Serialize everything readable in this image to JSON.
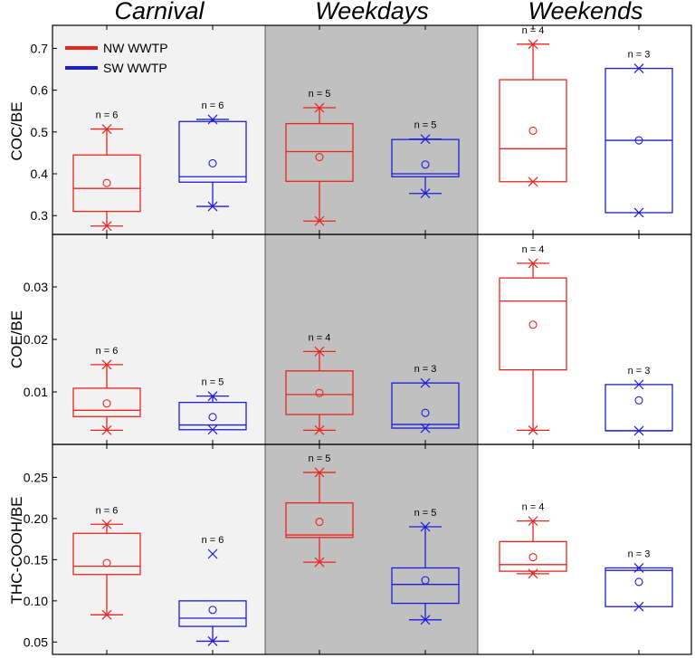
{
  "chart_data": {
    "type": "box",
    "groups": [
      "Carnival",
      "Weekdays",
      "Weekends"
    ],
    "group_shading": [
      "#f2f2f2",
      "#c0c0c0",
      "#ffffff"
    ],
    "legend": [
      {
        "name": "NW WWTP",
        "color": "#e8251f"
      },
      {
        "name": "SW WWTP",
        "color": "#1d1dd9"
      }
    ],
    "series_colors": {
      "NW WWTP": "#e8251f",
      "SW WWTP": "#1d1dd9"
    },
    "panels": [
      {
        "ylabel": "COC/BE",
        "ylim": [
          0.255,
          0.755
        ],
        "ticks": [
          0.3,
          0.4,
          0.5,
          0.6,
          0.7
        ],
        "tick_labels": [
          "0.3",
          "0.4",
          "0.5",
          "0.6",
          "0.7"
        ],
        "boxes": [
          {
            "group": "Carnival",
            "series": "NW WWTP",
            "n_label": "n = 6",
            "whisker_low": 0.275,
            "q1": 0.31,
            "median": 0.365,
            "q3": 0.445,
            "whisker_high": 0.507,
            "mean": 0.378,
            "min": 0.275,
            "max": 0.507,
            "outliers": []
          },
          {
            "group": "Carnival",
            "series": "SW WWTP",
            "n_label": "n = 6",
            "whisker_low": 0.322,
            "q1": 0.38,
            "median": 0.393,
            "q3": 0.525,
            "whisker_high": 0.53,
            "mean": 0.425,
            "min": 0.322,
            "max": 0.53,
            "outliers": []
          },
          {
            "group": "Weekdays",
            "series": "NW WWTP",
            "n_label": "n = 5",
            "whisker_low": 0.287,
            "q1": 0.382,
            "median": 0.453,
            "q3": 0.52,
            "whisker_high": 0.558,
            "mean": 0.44,
            "min": 0.287,
            "max": 0.558,
            "outliers": []
          },
          {
            "group": "Weekdays",
            "series": "SW WWTP",
            "n_label": "n = 5",
            "whisker_low": 0.353,
            "q1": 0.393,
            "median": 0.4,
            "q3": 0.482,
            "whisker_high": 0.483,
            "mean": 0.422,
            "min": 0.353,
            "max": 0.483,
            "outliers": []
          },
          {
            "group": "Weekends",
            "series": "NW WWTP",
            "n_label": "n = 4",
            "whisker_low": 0.381,
            "q1": 0.381,
            "median": 0.46,
            "q3": 0.625,
            "whisker_high": 0.71,
            "mean": 0.503,
            "min": 0.381,
            "max": 0.71,
            "outliers": []
          },
          {
            "group": "Weekends",
            "series": "SW WWTP",
            "n_label": "n = 3",
            "whisker_low": 0.307,
            "q1": 0.307,
            "median": 0.48,
            "q3": 0.652,
            "whisker_high": 0.652,
            "mean": 0.48,
            "min": 0.307,
            "max": 0.652,
            "outliers": []
          }
        ]
      },
      {
        "ylabel": "COE/BE",
        "ylim": [
          0.0,
          0.04
        ],
        "ticks": [
          0.01,
          0.02,
          0.03
        ],
        "tick_labels": [
          "0.01",
          "0.02",
          "0.03"
        ],
        "boxes": [
          {
            "group": "Carnival",
            "series": "NW WWTP",
            "n_label": "n = 6",
            "whisker_low": 0.0027,
            "q1": 0.0053,
            "median": 0.0065,
            "q3": 0.0107,
            "whisker_high": 0.0152,
            "mean": 0.0078,
            "min": 0.0027,
            "max": 0.0152,
            "outliers": []
          },
          {
            "group": "Carnival",
            "series": "SW WWTP",
            "n_label": "n = 5",
            "whisker_low": 0.0028,
            "q1": 0.0028,
            "median": 0.0037,
            "q3": 0.008,
            "whisker_high": 0.0092,
            "mean": 0.0052,
            "min": 0.0028,
            "max": 0.0092,
            "outliers": []
          },
          {
            "group": "Weekdays",
            "series": "NW WWTP",
            "n_label": "n = 4",
            "whisker_low": 0.0027,
            "q1": 0.0057,
            "median": 0.0095,
            "q3": 0.014,
            "whisker_high": 0.0177,
            "mean": 0.0098,
            "min": 0.0027,
            "max": 0.0177,
            "outliers": []
          },
          {
            "group": "Weekdays",
            "series": "SW WWTP",
            "n_label": "n = 3",
            "whisker_low": 0.0031,
            "q1": 0.0031,
            "median": 0.0038,
            "q3": 0.0117,
            "whisker_high": 0.0117,
            "mean": 0.006,
            "min": 0.0031,
            "max": 0.0117,
            "outliers": []
          },
          {
            "group": "Weekends",
            "series": "NW WWTP",
            "n_label": "n = 4",
            "whisker_low": 0.0027,
            "q1": 0.0142,
            "median": 0.0273,
            "q3": 0.0317,
            "whisker_high": 0.0345,
            "mean": 0.0228,
            "min": 0.0027,
            "max": 0.0345,
            "outliers": []
          },
          {
            "group": "Weekends",
            "series": "SW WWTP",
            "n_label": "n = 3",
            "whisker_low": 0.0026,
            "q1": 0.0026,
            "median": 0.0026,
            "q3": 0.0114,
            "whisker_high": 0.0114,
            "mean": 0.0084,
            "min": 0.0026,
            "max": 0.0114,
            "outliers": []
          }
        ]
      },
      {
        "ylabel": "THC-COOH/BE",
        "ylim": [
          0.035,
          0.29
        ],
        "ticks": [
          0.05,
          0.1,
          0.15,
          0.2,
          0.25
        ],
        "tick_labels": [
          "0.05",
          "0.10",
          "0.15",
          "0.20",
          "0.25"
        ],
        "boxes": [
          {
            "group": "Carnival",
            "series": "NW WWTP",
            "n_label": "n = 6",
            "whisker_low": 0.083,
            "q1": 0.132,
            "median": 0.142,
            "q3": 0.182,
            "whisker_high": 0.193,
            "mean": 0.146,
            "min": 0.083,
            "max": 0.193,
            "outliers": []
          },
          {
            "group": "Carnival",
            "series": "SW WWTP",
            "n_label": "n = 6",
            "whisker_low": 0.051,
            "q1": 0.069,
            "median": 0.079,
            "q3": 0.1,
            "whisker_high": 0.1,
            "mean": 0.089,
            "min": 0.051,
            "max": 0.157,
            "outliers": [
              0.157
            ]
          },
          {
            "group": "Weekdays",
            "series": "NW WWTP",
            "n_label": "n = 5",
            "whisker_low": 0.147,
            "q1": 0.177,
            "median": 0.18,
            "q3": 0.219,
            "whisker_high": 0.256,
            "mean": 0.196,
            "min": 0.147,
            "max": 0.256,
            "outliers": []
          },
          {
            "group": "Weekdays",
            "series": "SW WWTP",
            "n_label": "n = 5",
            "whisker_low": 0.077,
            "q1": 0.097,
            "median": 0.12,
            "q3": 0.14,
            "whisker_high": 0.19,
            "mean": 0.125,
            "min": 0.077,
            "max": 0.19,
            "outliers": []
          },
          {
            "group": "Weekends",
            "series": "NW WWTP",
            "n_label": "n = 4",
            "whisker_low": 0.133,
            "q1": 0.136,
            "median": 0.144,
            "q3": 0.172,
            "whisker_high": 0.197,
            "mean": 0.153,
            "min": 0.133,
            "max": 0.197,
            "outliers": []
          },
          {
            "group": "Weekends",
            "series": "SW WWTP",
            "n_label": "n = 3",
            "whisker_low": 0.093,
            "q1": 0.093,
            "median": 0.137,
            "q3": 0.14,
            "whisker_high": 0.14,
            "mean": 0.123,
            "min": 0.093,
            "max": 0.14,
            "outliers": []
          }
        ]
      }
    ]
  }
}
